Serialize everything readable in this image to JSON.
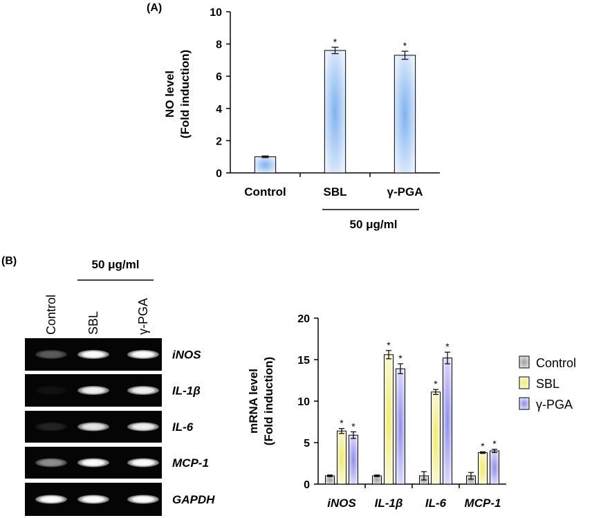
{
  "panel_a_label": "(A)",
  "panel_b_label": "(B)",
  "conc_label": "50 μg/ml",
  "chart_data": [
    {
      "type": "bar",
      "title": "",
      "xlabel": "",
      "ylabel": "NO level",
      "ylabel2": "(Fold induction)",
      "categories": [
        "Control",
        "SBL",
        "γ-PGA"
      ],
      "values": [
        1.0,
        7.6,
        7.3
      ],
      "errors": [
        0.05,
        0.2,
        0.25
      ],
      "significant": [
        false,
        true,
        true
      ],
      "ylim": [
        0,
        10
      ],
      "yticks": [
        "0",
        "2",
        "4",
        "6",
        "8",
        "10"
      ],
      "bar_color": "#b9d4f6",
      "group_label": "50 μg/ml"
    },
    {
      "type": "bar",
      "title": "",
      "xlabel": "",
      "ylabel": "mRNA level",
      "ylabel2": "(Fold induction)",
      "categories": [
        "iNOS",
        "IL-1β",
        "IL-6",
        "MCP-1"
      ],
      "series": [
        {
          "name": "Control",
          "color": "#c8c8c8",
          "values": [
            1.0,
            1.0,
            1.0,
            1.0
          ],
          "errors": [
            0.1,
            0.1,
            0.5,
            0.4
          ],
          "significant": [
            false,
            false,
            false,
            false
          ]
        },
        {
          "name": "SBL",
          "color": "#f7f3a6",
          "values": [
            6.4,
            15.6,
            11.1,
            3.8
          ],
          "errors": [
            0.3,
            0.5,
            0.3,
            0.1
          ],
          "significant": [
            true,
            true,
            true,
            true
          ]
        },
        {
          "name": "γ-PGA",
          "color": "#b7b5f2",
          "values": [
            5.9,
            13.9,
            15.2,
            4.0
          ],
          "errors": [
            0.4,
            0.6,
            0.7,
            0.2
          ],
          "significant": [
            true,
            true,
            true,
            true
          ]
        }
      ],
      "ylim": [
        0,
        20
      ],
      "yticks": [
        "0",
        "5",
        "10",
        "15",
        "20"
      ],
      "legend_position": "right"
    }
  ],
  "gel": {
    "lanes": [
      "Control",
      "SBL",
      "γ-PGA"
    ],
    "genes": [
      "iNOS",
      "IL-1β",
      "IL-6",
      "MCP-1",
      "GAPDH"
    ],
    "intensity": [
      [
        0.35,
        1.0,
        1.0
      ],
      [
        0.05,
        0.95,
        0.95
      ],
      [
        0.12,
        0.9,
        0.95
      ],
      [
        0.55,
        1.0,
        1.0
      ],
      [
        1.0,
        1.0,
        1.0
      ]
    ]
  }
}
